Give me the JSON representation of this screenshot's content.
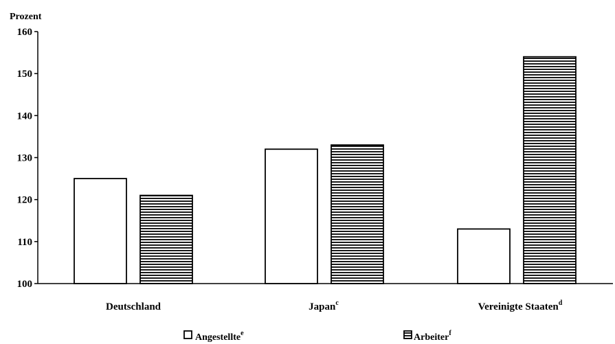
{
  "chart_data": {
    "type": "bar",
    "ylabel": "Prozent",
    "ylim": [
      100,
      160
    ],
    "yticks": [
      100,
      110,
      120,
      130,
      140,
      150,
      160
    ],
    "categories": [
      {
        "label": "Deutschland",
        "sup": ""
      },
      {
        "label": "Japan",
        "sup": "c"
      },
      {
        "label": "Vereinigte Staaten",
        "sup": "d"
      }
    ],
    "series": [
      {
        "name": "Angestellte",
        "sup": "e",
        "values": [
          125,
          132,
          113
        ],
        "fill": "#ffffff"
      },
      {
        "name": "Arbeiter",
        "sup": "f",
        "values": [
          121,
          133,
          154
        ],
        "fill": "hatched"
      }
    ],
    "legend_position": "bottom"
  }
}
